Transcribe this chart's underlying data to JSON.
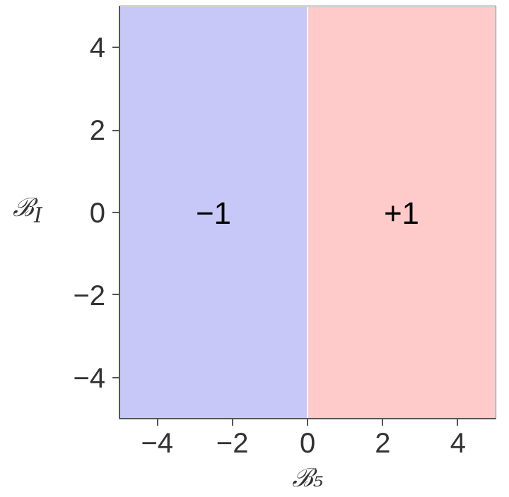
{
  "chart_data": {
    "type": "line",
    "xlabel": "ℬ₅",
    "ylabel": "ℬ$_{I}$",
    "xlim": [
      -5,
      5
    ],
    "ylim": [
      -5,
      5
    ],
    "xticks": [
      {
        "value": -4,
        "label": "−4"
      },
      {
        "value": -2,
        "label": "−2"
      },
      0,
      2,
      4
    ],
    "yticks": [
      {
        "value": -4,
        "label": "−4"
      },
      {
        "value": -2,
        "label": "−2"
      },
      0,
      2,
      4
    ],
    "bands": [
      {
        "axis": "x",
        "from": -5,
        "to": 0,
        "label": "−1",
        "color": "#c8c8f8"
      },
      {
        "axis": "x",
        "from": 0,
        "to": 5,
        "label": "+1",
        "color": "#fecaca"
      }
    ]
  }
}
